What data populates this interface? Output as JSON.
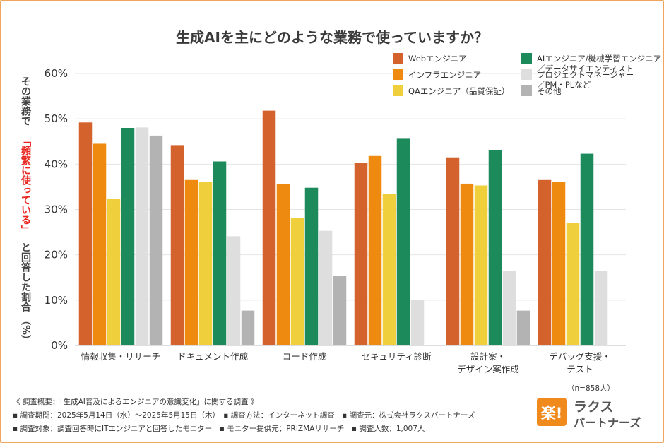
{
  "chart_data": {
    "type": "bar",
    "title": "生成AIを主にどのような業務で使っていますか？",
    "ylabel_parts": [
      "その業務で",
      "「頻繁に使っている」",
      "と回答した割合",
      "（%）"
    ],
    "ylim": [
      0,
      60
    ],
    "yticks": [
      "0%",
      "10%",
      "20%",
      "30%",
      "40%",
      "50%",
      "60%"
    ],
    "grid": true,
    "legend_position": "top-right",
    "categories": [
      [
        "情報収集・リサーチ"
      ],
      [
        "ドキュメント作成"
      ],
      [
        "コード作成"
      ],
      [
        "セキュリティ診断"
      ],
      [
        "設計案・",
        "デザイン案作成"
      ],
      [
        "デバッグ支援・",
        "テスト"
      ]
    ],
    "series": [
      {
        "name": [
          "Webエンジニア"
        ],
        "color": "#d4622d",
        "values": [
          49.2,
          44.2,
          51.8,
          40.3,
          41.5,
          36.5
        ]
      },
      {
        "name": [
          "インフラエンジニア"
        ],
        "color": "#ee8a10",
        "values": [
          44.5,
          36.5,
          35.6,
          41.8,
          35.7,
          36.0
        ]
      },
      {
        "name": [
          "QAエンジニア（品質保証）"
        ],
        "color": "#f0cf3c",
        "values": [
          32.3,
          36.0,
          28.2,
          33.5,
          35.3,
          27.1
        ]
      },
      {
        "name": [
          "AIエンジニア/機械学習エンジニア",
          "／データサイエンティスト"
        ],
        "color": "#1d8a5c",
        "values": [
          48.0,
          40.6,
          34.8,
          45.6,
          43.1,
          42.3
        ]
      },
      {
        "name": [
          "プロジェクトマネージャー",
          "／PM・PLなど"
        ],
        "color": "#dedede",
        "values": [
          48.1,
          24.1,
          25.3,
          10.0,
          16.5,
          16.5
        ]
      },
      {
        "name": [
          "その他"
        ],
        "color": "#b3b3b3",
        "values": [
          46.3,
          7.7,
          15.4,
          null,
          7.7,
          null
        ]
      }
    ],
    "sample_size": "（n=858人）"
  },
  "notes": {
    "summary": "《 調査概要：「生成AI普及によるエンジニアの意識変化」に関する調査 》",
    "line1": "▪ 調査期間：2025年5月14日（水）〜2025年5月15日（木）　▪ 調査方法：インターネット調査　▪ 調査元：株式会社ラクスパートナーズ",
    "line2": "▪ 調査対象：調査回答時にITエンジニアと回答したモニター　▪ モニター提供元：PRIZMAリサーチ　▪ 調査人数：1,007人"
  },
  "logo": {
    "mark": "楽!",
    "line1": "ラクス",
    "line2": "パートナーズ",
    "color": "#f08a1c"
  }
}
